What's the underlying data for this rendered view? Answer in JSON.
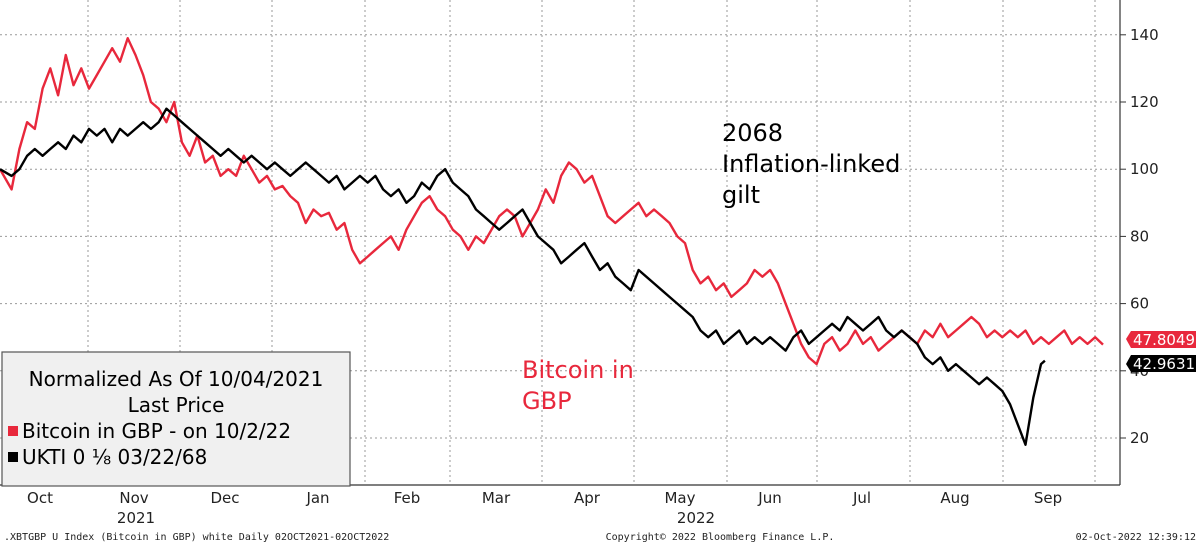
{
  "chart_data": {
    "type": "line",
    "y_axis": {
      "min": 10,
      "max": 145,
      "ticks": [
        20,
        40,
        60,
        80,
        100,
        120,
        140
      ],
      "position": "right"
    },
    "x_axis": {
      "months": [
        "Oct",
        "Nov",
        "Dec",
        "Jan",
        "Feb",
        "Mar",
        "Apr",
        "May",
        "Jun",
        "Jul",
        "Aug",
        "Sep"
      ],
      "years": [
        "2021",
        "2022"
      ]
    },
    "grid": true,
    "series": [
      {
        "name": "Bitcoin in GBP",
        "color": "#e8283c",
        "last_value": "47.8049",
        "points": [
          [
            0,
            100
          ],
          [
            3,
            94
          ],
          [
            5,
            106
          ],
          [
            7,
            114
          ],
          [
            9,
            112
          ],
          [
            11,
            124
          ],
          [
            13,
            130
          ],
          [
            15,
            122
          ],
          [
            17,
            134
          ],
          [
            19,
            125
          ],
          [
            21,
            130
          ],
          [
            23,
            124
          ],
          [
            25,
            128
          ],
          [
            27,
            132
          ],
          [
            29,
            136
          ],
          [
            31,
            132
          ],
          [
            33,
            139
          ],
          [
            35,
            134
          ],
          [
            37,
            128
          ],
          [
            39,
            120
          ],
          [
            41,
            118
          ],
          [
            43,
            114
          ],
          [
            45,
            120
          ],
          [
            47,
            108
          ],
          [
            49,
            104
          ],
          [
            51,
            110
          ],
          [
            53,
            102
          ],
          [
            55,
            104
          ],
          [
            57,
            98
          ],
          [
            59,
            100
          ],
          [
            61,
            98
          ],
          [
            63,
            104
          ],
          [
            65,
            100
          ],
          [
            67,
            96
          ],
          [
            69,
            98
          ],
          [
            71,
            94
          ],
          [
            73,
            95
          ],
          [
            75,
            92
          ],
          [
            77,
            90
          ],
          [
            79,
            84
          ],
          [
            81,
            88
          ],
          [
            83,
            86
          ],
          [
            85,
            87
          ],
          [
            87,
            82
          ],
          [
            89,
            84
          ],
          [
            91,
            76
          ],
          [
            93,
            72
          ],
          [
            95,
            74
          ],
          [
            97,
            76
          ],
          [
            99,
            78
          ],
          [
            101,
            80
          ],
          [
            103,
            76
          ],
          [
            105,
            82
          ],
          [
            107,
            86
          ],
          [
            109,
            90
          ],
          [
            111,
            92
          ],
          [
            113,
            88
          ],
          [
            115,
            86
          ],
          [
            117,
            82
          ],
          [
            119,
            80
          ],
          [
            121,
            76
          ],
          [
            123,
            80
          ],
          [
            125,
            78
          ],
          [
            127,
            82
          ],
          [
            129,
            86
          ],
          [
            131,
            88
          ],
          [
            133,
            86
          ],
          [
            135,
            80
          ],
          [
            137,
            84
          ],
          [
            139,
            88
          ],
          [
            141,
            94
          ],
          [
            143,
            90
          ],
          [
            145,
            98
          ],
          [
            147,
            102
          ],
          [
            149,
            100
          ],
          [
            151,
            96
          ],
          [
            153,
            98
          ],
          [
            155,
            92
          ],
          [
            157,
            86
          ],
          [
            159,
            84
          ],
          [
            161,
            86
          ],
          [
            163,
            88
          ],
          [
            165,
            90
          ],
          [
            167,
            86
          ],
          [
            169,
            88
          ],
          [
            171,
            86
          ],
          [
            173,
            84
          ],
          [
            175,
            80
          ],
          [
            177,
            78
          ],
          [
            179,
            70
          ],
          [
            181,
            66
          ],
          [
            183,
            68
          ],
          [
            185,
            64
          ],
          [
            187,
            66
          ],
          [
            189,
            62
          ],
          [
            191,
            64
          ],
          [
            193,
            66
          ],
          [
            195,
            70
          ],
          [
            197,
            68
          ],
          [
            199,
            70
          ],
          [
            201,
            66
          ],
          [
            203,
            60
          ],
          [
            205,
            54
          ],
          [
            207,
            48
          ],
          [
            209,
            44
          ],
          [
            211,
            42
          ],
          [
            213,
            48
          ],
          [
            215,
            50
          ],
          [
            217,
            46
          ],
          [
            219,
            48
          ],
          [
            221,
            52
          ],
          [
            223,
            48
          ],
          [
            225,
            50
          ],
          [
            227,
            46
          ],
          [
            229,
            48
          ],
          [
            231,
            50
          ],
          [
            233,
            52
          ],
          [
            235,
            50
          ],
          [
            237,
            48
          ],
          [
            239,
            52
          ],
          [
            241,
            50
          ],
          [
            243,
            54
          ],
          [
            245,
            50
          ],
          [
            247,
            52
          ],
          [
            249,
            54
          ],
          [
            251,
            56
          ],
          [
            253,
            54
          ],
          [
            255,
            50
          ],
          [
            257,
            52
          ],
          [
            259,
            50
          ],
          [
            261,
            52
          ],
          [
            263,
            50
          ],
          [
            265,
            52
          ],
          [
            267,
            48
          ],
          [
            269,
            50
          ],
          [
            271,
            48
          ],
          [
            273,
            50
          ],
          [
            275,
            52
          ],
          [
            277,
            48
          ],
          [
            279,
            50
          ],
          [
            281,
            48
          ],
          [
            283,
            50
          ],
          [
            285,
            47.8
          ]
        ]
      },
      {
        "name": "UKTI 0 ⅛ 03/22/68",
        "color": "#000000",
        "last_value": "42.9631",
        "points": [
          [
            0,
            100
          ],
          [
            3,
            98
          ],
          [
            5,
            100
          ],
          [
            7,
            104
          ],
          [
            9,
            106
          ],
          [
            11,
            104
          ],
          [
            13,
            106
          ],
          [
            15,
            108
          ],
          [
            17,
            106
          ],
          [
            19,
            110
          ],
          [
            21,
            108
          ],
          [
            23,
            112
          ],
          [
            25,
            110
          ],
          [
            27,
            112
          ],
          [
            29,
            108
          ],
          [
            31,
            112
          ],
          [
            33,
            110
          ],
          [
            35,
            112
          ],
          [
            37,
            114
          ],
          [
            39,
            112
          ],
          [
            41,
            114
          ],
          [
            43,
            118
          ],
          [
            45,
            116
          ],
          [
            47,
            114
          ],
          [
            49,
            112
          ],
          [
            51,
            110
          ],
          [
            53,
            108
          ],
          [
            55,
            106
          ],
          [
            57,
            104
          ],
          [
            59,
            106
          ],
          [
            61,
            104
          ],
          [
            63,
            102
          ],
          [
            65,
            104
          ],
          [
            67,
            102
          ],
          [
            69,
            100
          ],
          [
            71,
            102
          ],
          [
            73,
            100
          ],
          [
            75,
            98
          ],
          [
            77,
            100
          ],
          [
            79,
            102
          ],
          [
            81,
            100
          ],
          [
            83,
            98
          ],
          [
            85,
            96
          ],
          [
            87,
            98
          ],
          [
            89,
            94
          ],
          [
            91,
            96
          ],
          [
            93,
            98
          ],
          [
            95,
            96
          ],
          [
            97,
            98
          ],
          [
            99,
            94
          ],
          [
            101,
            92
          ],
          [
            103,
            94
          ],
          [
            105,
            90
          ],
          [
            107,
            92
          ],
          [
            109,
            96
          ],
          [
            111,
            94
          ],
          [
            113,
            98
          ],
          [
            115,
            100
          ],
          [
            117,
            96
          ],
          [
            119,
            94
          ],
          [
            121,
            92
          ],
          [
            123,
            88
          ],
          [
            125,
            86
          ],
          [
            127,
            84
          ],
          [
            129,
            82
          ],
          [
            131,
            84
          ],
          [
            133,
            86
          ],
          [
            135,
            88
          ],
          [
            137,
            84
          ],
          [
            139,
            80
          ],
          [
            141,
            78
          ],
          [
            143,
            76
          ],
          [
            145,
            72
          ],
          [
            147,
            74
          ],
          [
            149,
            76
          ],
          [
            151,
            78
          ],
          [
            153,
            74
          ],
          [
            155,
            70
          ],
          [
            157,
            72
          ],
          [
            159,
            68
          ],
          [
            161,
            66
          ],
          [
            163,
            64
          ],
          [
            165,
            70
          ],
          [
            167,
            68
          ],
          [
            169,
            66
          ],
          [
            171,
            64
          ],
          [
            173,
            62
          ],
          [
            175,
            60
          ],
          [
            177,
            58
          ],
          [
            179,
            56
          ],
          [
            181,
            52
          ],
          [
            183,
            50
          ],
          [
            185,
            52
          ],
          [
            187,
            48
          ],
          [
            189,
            50
          ],
          [
            191,
            52
          ],
          [
            193,
            48
          ],
          [
            195,
            50
          ],
          [
            197,
            48
          ],
          [
            199,
            50
          ],
          [
            201,
            48
          ],
          [
            203,
            46
          ],
          [
            205,
            50
          ],
          [
            207,
            52
          ],
          [
            209,
            48
          ],
          [
            211,
            50
          ],
          [
            213,
            52
          ],
          [
            215,
            54
          ],
          [
            217,
            52
          ],
          [
            219,
            56
          ],
          [
            221,
            54
          ],
          [
            223,
            52
          ],
          [
            225,
            54
          ],
          [
            227,
            56
          ],
          [
            229,
            52
          ],
          [
            231,
            50
          ],
          [
            233,
            52
          ],
          [
            235,
            50
          ],
          [
            237,
            48
          ],
          [
            239,
            44
          ],
          [
            241,
            42
          ],
          [
            243,
            44
          ],
          [
            245,
            40
          ],
          [
            247,
            42
          ],
          [
            249,
            40
          ],
          [
            251,
            38
          ],
          [
            253,
            36
          ],
          [
            255,
            38
          ],
          [
            257,
            36
          ],
          [
            259,
            34
          ],
          [
            261,
            30
          ],
          [
            263,
            24
          ],
          [
            265,
            18
          ],
          [
            267,
            32
          ],
          [
            269,
            42
          ],
          [
            270,
            43
          ]
        ]
      }
    ]
  },
  "annotations": {
    "gilt_line1": "2068",
    "gilt_line2": "Inflation-linked",
    "gilt_line3": "gilt",
    "btc_line1": "Bitcoin in",
    "btc_line2": "GBP"
  },
  "legend": {
    "title_line1": "Normalized As Of 10/04/2021",
    "title_line2": "Last Price",
    "item1": "Bitcoin in GBP -  on 10/2/22",
    "item2": "UKTI 0 ⅛  03/22/68"
  },
  "footer": {
    "left": ".XBTGBP U Index (Bitcoin in GBP) white  Daily 02OCT2021-02OCT2022",
    "center": "Copyright© 2022 Bloomberg Finance L.P.",
    "right": "02-Oct-2022 12:39:12"
  }
}
